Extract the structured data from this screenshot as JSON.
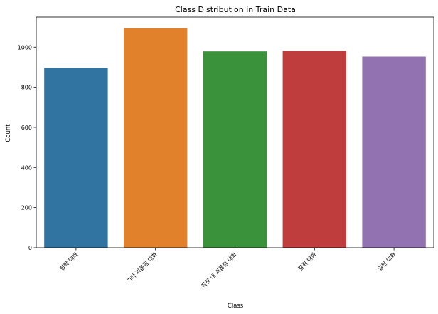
{
  "chart_data": {
    "type": "bar",
    "title": "Class Distribution in Train Data",
    "xlabel": "Class",
    "ylabel": "Count",
    "categories": [
      "협박 대화",
      "기타 괴롭힘 대화",
      "직장 내 괴롭힘 대화",
      "갈취 대화",
      "일반 대화"
    ],
    "values": [
      896,
      1094,
      979,
      981,
      953
    ],
    "colors": [
      "#3274a1",
      "#e1812c",
      "#3a923a",
      "#c03d3e",
      "#9372b2"
    ],
    "ylim": [
      0,
      1150
    ],
    "yticks": [
      0,
      200,
      400,
      600,
      800,
      1000
    ],
    "grid": false,
    "legend": "none"
  }
}
